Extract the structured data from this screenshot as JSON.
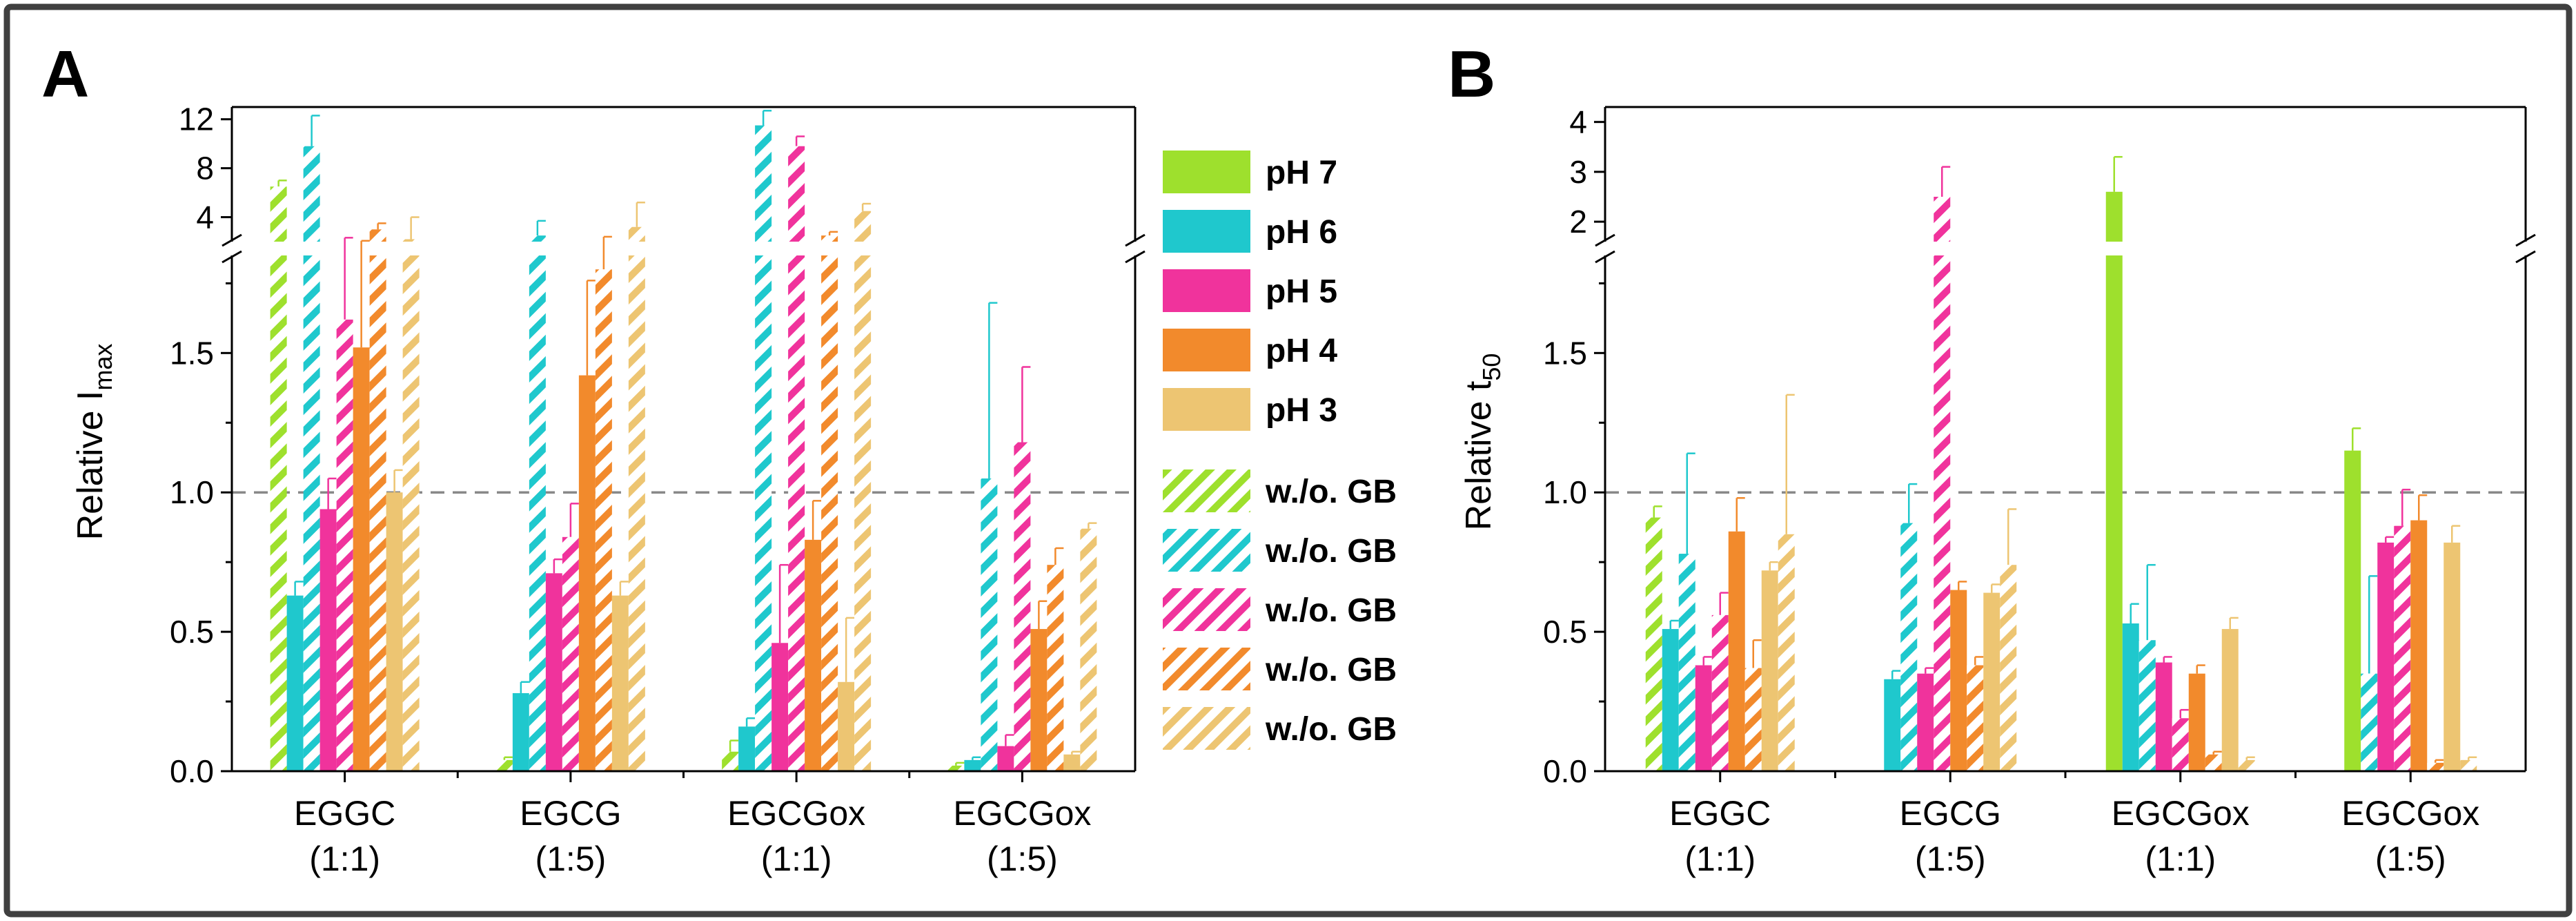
{
  "figure": {
    "colors": {
      "pH 7": "#9ee02d",
      "pH 6": "#1fc8cd",
      "pH 5": "#f0339c",
      "pH 4": "#f28a2c",
      "pH 3": "#edc572"
    },
    "legend": {
      "solid": [
        "pH 7",
        "pH 6",
        "pH 5",
        "pH 4",
        "pH 3"
      ],
      "hatched": [
        "w./o. GB",
        "w./o. GB",
        "w./o. GB",
        "w./o. GB",
        "w./o. GB"
      ]
    }
  },
  "chart_data": [
    {
      "panel": "A",
      "type": "bar",
      "ylabel_main": "Relative I",
      "ylabel_sub": "max",
      "categories": [
        {
          "line1": "EGGC",
          "line2": "(1:1)"
        },
        {
          "line1": "EGCG",
          "line2": "(1:5)"
        },
        {
          "line1": "EGCGox",
          "line2": "(1:1)"
        },
        {
          "line1": "EGCGox",
          "line2": "(1:5)"
        }
      ],
      "lower_ylim": [
        0,
        1.85
      ],
      "lower_ticks": [
        "0.0",
        "0.5",
        "1.0",
        "1.5"
      ],
      "upper_ylim": [
        2,
        13
      ],
      "upper_ticks": [
        "4",
        "8",
        "12"
      ],
      "reference_y": 1.0,
      "bar_order": [
        [
          "pH 7",
          "hatched"
        ],
        [
          "pH 6",
          "solid"
        ],
        [
          "pH 6",
          "hatched"
        ],
        [
          "pH 5",
          "solid"
        ],
        [
          "pH 5",
          "hatched"
        ],
        [
          "pH 4",
          "solid"
        ],
        [
          "pH 4",
          "hatched"
        ],
        [
          "pH 3",
          "solid"
        ],
        [
          "pH 3",
          "hatched"
        ]
      ],
      "groups": [
        {
          "values": [
            6.5,
            0.63,
            9.8,
            0.94,
            1.62,
            1.52,
            3.0,
            1.0,
            2.2
          ],
          "errors": [
            0.5,
            0.05,
            2.5,
            0.11,
            0.7,
            0.55,
            0.5,
            0.08,
            1.8
          ]
        },
        {
          "values": [
            0.04,
            0.28,
            2.5,
            0.71,
            0.84,
            1.42,
            1.8,
            0.63,
            3.2
          ],
          "errors": [
            0.01,
            0.04,
            1.2,
            0.05,
            0.12,
            0.34,
            0.6,
            0.05,
            2.0
          ]
        },
        {
          "values": [
            0.07,
            0.16,
            11.5,
            0.46,
            9.8,
            0.83,
            2.5,
            0.32,
            4.5
          ],
          "errors": [
            0.04,
            0.03,
            1.2,
            0.28,
            0.8,
            0.14,
            0.3,
            0.23,
            0.6
          ]
        },
        {
          "values": [
            0.02,
            0.04,
            1.05,
            0.09,
            1.18,
            0.51,
            0.74,
            0.06,
            0.87
          ],
          "errors": [
            0.01,
            0.01,
            0.63,
            0.04,
            0.27,
            0.1,
            0.06,
            0.01,
            0.02
          ]
        }
      ]
    },
    {
      "panel": "B",
      "type": "bar",
      "ylabel_main": "Relative t",
      "ylabel_sub": "50",
      "categories": [
        {
          "line1": "EGGC",
          "line2": "(1:1)"
        },
        {
          "line1": "EGCG",
          "line2": "(1:5)"
        },
        {
          "line1": "EGCGox",
          "line2": "(1:1)"
        },
        {
          "line1": "EGCGox",
          "line2": "(1:5)"
        }
      ],
      "lower_ylim": [
        0,
        1.85
      ],
      "lower_ticks": [
        "0.0",
        "0.5",
        "1.0",
        "1.5"
      ],
      "upper_ylim": [
        1.6,
        4.3
      ],
      "upper_ticks": [
        "2",
        "3",
        "4"
      ],
      "reference_y": 1.0,
      "groups": [
        {
          "bars": [
            {
              "series": "pH 7",
              "style": "hatched",
              "value": 0.91,
              "err": 0.04
            },
            {
              "series": "pH 6",
              "style": "solid",
              "value": 0.51,
              "err": 0.03
            },
            {
              "series": "pH 6",
              "style": "hatched",
              "value": 0.78,
              "err": 0.36
            },
            {
              "series": "pH 5",
              "style": "solid",
              "value": 0.38,
              "err": 0.03
            },
            {
              "series": "pH 5",
              "style": "hatched",
              "value": 0.56,
              "err": 0.08
            },
            {
              "series": "pH 4",
              "style": "solid",
              "value": 0.86,
              "err": 0.12
            },
            {
              "series": "pH 4",
              "style": "hatched",
              "value": 0.37,
              "err": 0.1
            },
            {
              "series": "pH 3",
              "style": "solid",
              "value": 0.72,
              "err": 0.03
            },
            {
              "series": "pH 3",
              "style": "hatched",
              "value": 0.85,
              "err": 0.5
            }
          ]
        },
        {
          "bars": [
            {
              "series": "pH 6",
              "style": "solid",
              "value": 0.33,
              "err": 0.03
            },
            {
              "series": "pH 6",
              "style": "hatched",
              "value": 0.89,
              "err": 0.14
            },
            {
              "series": "pH 5",
              "style": "solid",
              "value": 0.35,
              "err": 0.02
            },
            {
              "series": "pH 5",
              "style": "hatched",
              "value": 2.5,
              "err": 0.6
            },
            {
              "series": "pH 4",
              "style": "solid",
              "value": 0.65,
              "err": 0.03
            },
            {
              "series": "pH 4",
              "style": "hatched",
              "value": 0.38,
              "err": 0.03
            },
            {
              "series": "pH 3",
              "style": "solid",
              "value": 0.64,
              "err": 0.03
            },
            {
              "series": "pH 3",
              "style": "hatched",
              "value": 0.74,
              "err": 0.2
            }
          ]
        },
        {
          "bars": [
            {
              "series": "pH 7",
              "style": "solid",
              "value": 2.6,
              "err": 0.7
            },
            {
              "series": "pH 6",
              "style": "solid",
              "value": 0.53,
              "err": 0.07
            },
            {
              "series": "pH 6",
              "style": "hatched",
              "value": 0.47,
              "err": 0.27
            },
            {
              "series": "pH 5",
              "style": "solid",
              "value": 0.39,
              "err": 0.02
            },
            {
              "series": "pH 5",
              "style": "hatched",
              "value": 0.19,
              "err": 0.03
            },
            {
              "series": "pH 4",
              "style": "solid",
              "value": 0.35,
              "err": 0.03
            },
            {
              "series": "pH 4",
              "style": "hatched",
              "value": 0.06,
              "err": 0.01
            },
            {
              "series": "pH 3",
              "style": "solid",
              "value": 0.51,
              "err": 0.04
            },
            {
              "series": "pH 3",
              "style": "hatched",
              "value": 0.04,
              "err": 0.01
            }
          ]
        },
        {
          "bars": [
            {
              "series": "pH 7",
              "style": "solid",
              "value": 1.15,
              "err": 0.08
            },
            {
              "series": "pH 6",
              "style": "hatched",
              "value": 0.35,
              "err": 0.35
            },
            {
              "series": "pH 5",
              "style": "solid",
              "value": 0.82,
              "err": 0.02
            },
            {
              "series": "pH 5",
              "style": "hatched",
              "value": 0.88,
              "err": 0.13
            },
            {
              "series": "pH 4",
              "style": "solid",
              "value": 0.9,
              "err": 0.09
            },
            {
              "series": "pH 4",
              "style": "hatched",
              "value": 0.03,
              "err": 0.01
            },
            {
              "series": "pH 3",
              "style": "solid",
              "value": 0.82,
              "err": 0.06
            },
            {
              "series": "pH 3",
              "style": "hatched",
              "value": 0.04,
              "err": 0.01
            }
          ]
        }
      ]
    }
  ],
  "panel_labels": {
    "a": "A",
    "b": "B"
  }
}
